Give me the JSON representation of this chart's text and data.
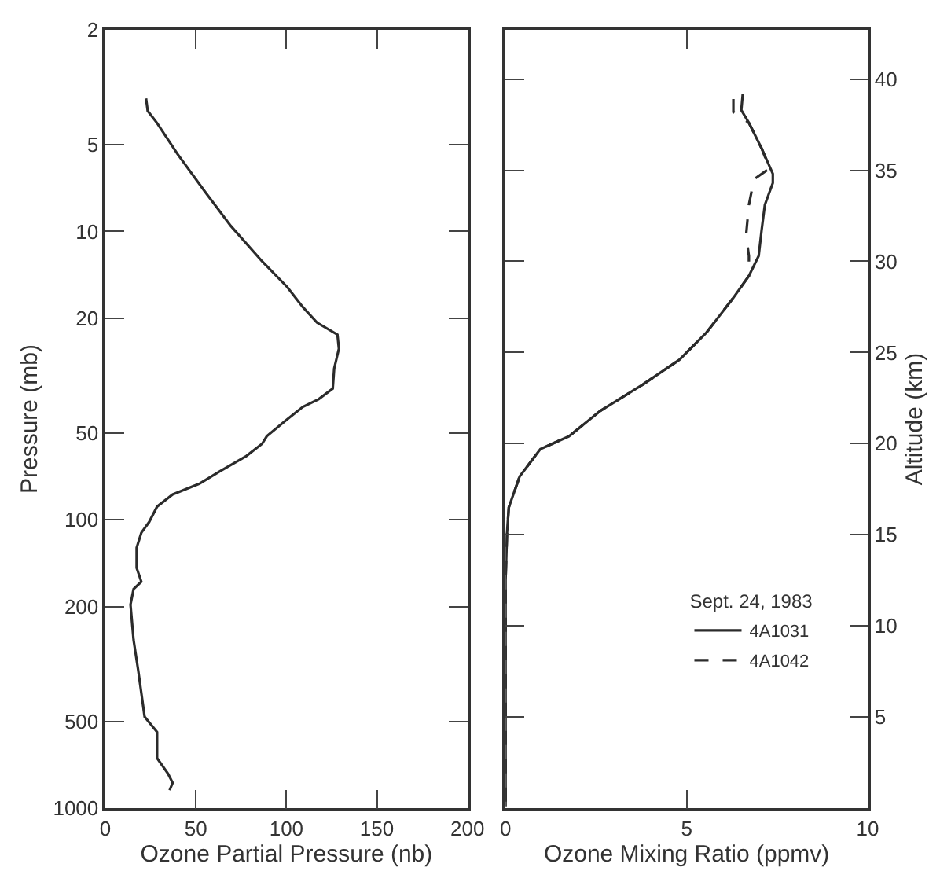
{
  "chart_data": [
    {
      "type": "line",
      "xlabel": "Ozone Partial Pressure (nb)",
      "ylabel": "Pressure (mb)",
      "log": "y",
      "xlim": [
        0,
        200
      ],
      "xticks": [
        0,
        50,
        100,
        150,
        200
      ],
      "ylim": [
        1000,
        2
      ],
      "yticks": [
        2,
        5,
        10,
        20,
        50,
        100,
        200,
        500,
        1000
      ],
      "legend": false,
      "line_style": "solid",
      "series": [
        {
          "color": "#2b2b2b",
          "x": [
            22.5,
            23.4,
            28.6,
            39.8,
            54.6,
            69.3,
            86.6,
            100.5,
            109.1,
            116.9,
            128.2,
            129.0,
            126.4,
            125.6,
            117.8,
            109.1,
            99.6,
            89.2,
            86.6,
            77.9,
            63.2,
            52.0,
            37.2,
            28.6,
            24.2,
            19.9,
            17.3,
            17.3,
            19.9,
            15.6,
            13.9,
            15.6,
            18.2,
            21.7,
            28.6,
            28.6,
            34.6,
            37.2,
            35.5
          ],
          "values": [
            3.46,
            3.82,
            4.21,
            5.38,
            7.22,
            9.57,
            12.7,
            15.6,
            18.3,
            20.7,
            22.8,
            25.5,
            29.9,
            35.1,
            38.2,
            40.6,
            45.3,
            51.3,
            54.5,
            60.1,
            67.9,
            75.0,
            81.7,
            90.0,
            101.8,
            110.9,
            125,
            147,
            164,
            174,
            197,
            261,
            334,
            482,
            545,
            671,
            759,
            817,
            867
          ]
        }
      ]
    },
    {
      "type": "line",
      "xlabel": "Ozone Mixing Ratio (ppmv)",
      "y2label": "Altitude (km)",
      "xlim": [
        0,
        10
      ],
      "xticks": [
        0,
        5,
        10
      ],
      "y2lim": [
        0,
        42.7
      ],
      "y2ticks": [
        5,
        10,
        15,
        20,
        25,
        30,
        35,
        40
      ],
      "legend": "bottom right",
      "legend_title": "Sept. 24, 1983",
      "series": [
        {
          "name": "4A1031",
          "color": "#2b2b2b",
          "line_style": "solid",
          "axis": "y2",
          "x": [
            6.55,
            6.51,
            6.72,
            7.07,
            7.38,
            7.38,
            7.16,
            7.07,
            6.99,
            6.72,
            6.29,
            5.98,
            5.55,
            4.8,
            3.8,
            2.62,
            1.75,
            0.96,
            0.39,
            0.09,
            0.04,
            0,
            0
          ],
          "values": [
            39.2,
            38.3,
            37.6,
            36.2,
            34.8,
            34.3,
            33.1,
            31.7,
            30.3,
            29.2,
            28.0,
            27.2,
            26.1,
            24.6,
            23.25,
            21.8,
            20.4,
            19.7,
            18.2,
            16.5,
            15.1,
            12.5,
            0.1
          ]
        },
        {
          "name": "4A1042",
          "color": "#2b2b2b",
          "line_style": "dashed",
          "axis": "y2",
          "x": [
            6.29,
            6.29,
            6.72,
            7.07,
            7.29,
            6.86,
            6.72,
            6.64,
            6.72,
            6.72,
            6.29,
            5.98,
            5.55,
            4.8,
            3.8,
            2.62,
            1.75,
            0.96,
            0.39,
            0.09,
            0.04,
            0,
            0
          ],
          "values": [
            38.9,
            38.2,
            37.6,
            36.2,
            35.1,
            34.5,
            33.1,
            31.4,
            30.3,
            29.2,
            28.0,
            27.2,
            26.1,
            24.6,
            23.25,
            21.8,
            20.4,
            19.7,
            18.2,
            16.5,
            15.1,
            12.5,
            0.1
          ]
        }
      ]
    }
  ]
}
